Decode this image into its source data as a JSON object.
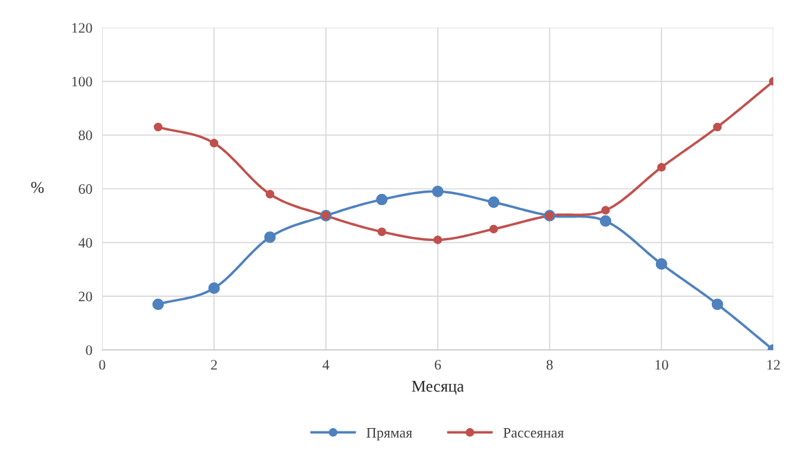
{
  "chart_data": {
    "type": "line",
    "xlabel": "Месяца",
    "ylabel": "%",
    "x": [
      1,
      2,
      3,
      4,
      5,
      6,
      7,
      8,
      9,
      10,
      11,
      12
    ],
    "series": [
      {
        "name": "Прямая",
        "color": "#4f81bd",
        "values": [
          17,
          23,
          42,
          50,
          56,
          59,
          55,
          50,
          48,
          32,
          17,
          0
        ]
      },
      {
        "name": "Рассеяная",
        "color": "#c0504d",
        "values": [
          83,
          77,
          58,
          50,
          44,
          41,
          45,
          50,
          52,
          68,
          83,
          100
        ]
      }
    ],
    "xlim": [
      0,
      12
    ],
    "xticks": [
      0,
      2,
      4,
      6,
      8,
      10,
      12
    ],
    "ylim": [
      0,
      120
    ],
    "yticks": [
      0,
      20,
      40,
      60,
      80,
      100,
      120
    ],
    "grid": true,
    "legend": "bottom",
    "marker": "circle",
    "line_style": "solid"
  }
}
